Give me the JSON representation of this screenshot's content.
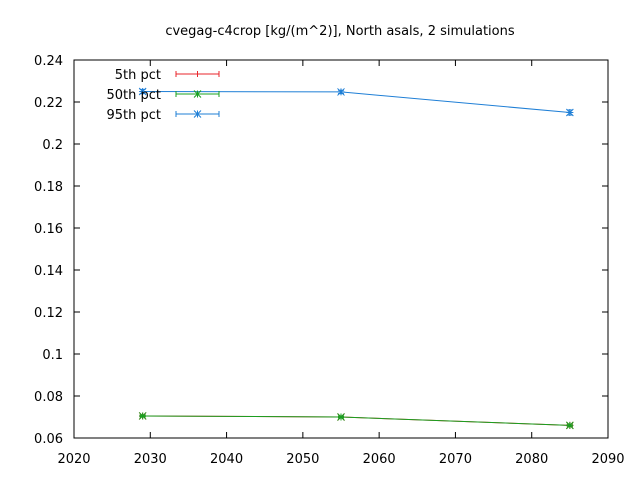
{
  "chart_data": {
    "type": "line",
    "title": "cvegag-c4crop [kg/(m^2)], North asals, 2 simulations",
    "xlabel": "",
    "ylabel": "",
    "xlim": [
      2020,
      2090
    ],
    "ylim": [
      0.06,
      0.24
    ],
    "x_ticks": [
      2020,
      2030,
      2040,
      2050,
      2060,
      2070,
      2080,
      2090
    ],
    "y_ticks": [
      0.06,
      0.08,
      0.1,
      0.12,
      0.14,
      0.16,
      0.18,
      0.2,
      0.22,
      0.24
    ],
    "x_tick_labels": [
      "2020",
      "2030",
      "2040",
      "2050",
      "2060",
      "2070",
      "2080",
      "2090"
    ],
    "y_tick_labels": [
      "0.06",
      "0.08",
      "0.1",
      "0.12",
      "0.14",
      "0.16",
      "0.18",
      "0.2",
      "0.22",
      "0.24"
    ],
    "grid": false,
    "legend_position": "top-left",
    "x": [
      2029,
      2055,
      2085
    ],
    "series": [
      {
        "name": "5th pct",
        "color": "#e8262b",
        "values": [
          0.0705,
          0.07,
          0.066
        ],
        "error": [
          0.0005,
          0.0005,
          0.0006
        ]
      },
      {
        "name": "50th pct",
        "color": "#18a020",
        "values": [
          0.0705,
          0.07,
          0.066
        ],
        "error": [
          0.0005,
          0.0005,
          0.0006
        ]
      },
      {
        "name": "95th pct",
        "color": "#1f7fd6",
        "values": [
          0.225,
          0.2248,
          0.215
        ],
        "error": [
          0.001,
          0.0008,
          0.0012
        ]
      }
    ]
  }
}
